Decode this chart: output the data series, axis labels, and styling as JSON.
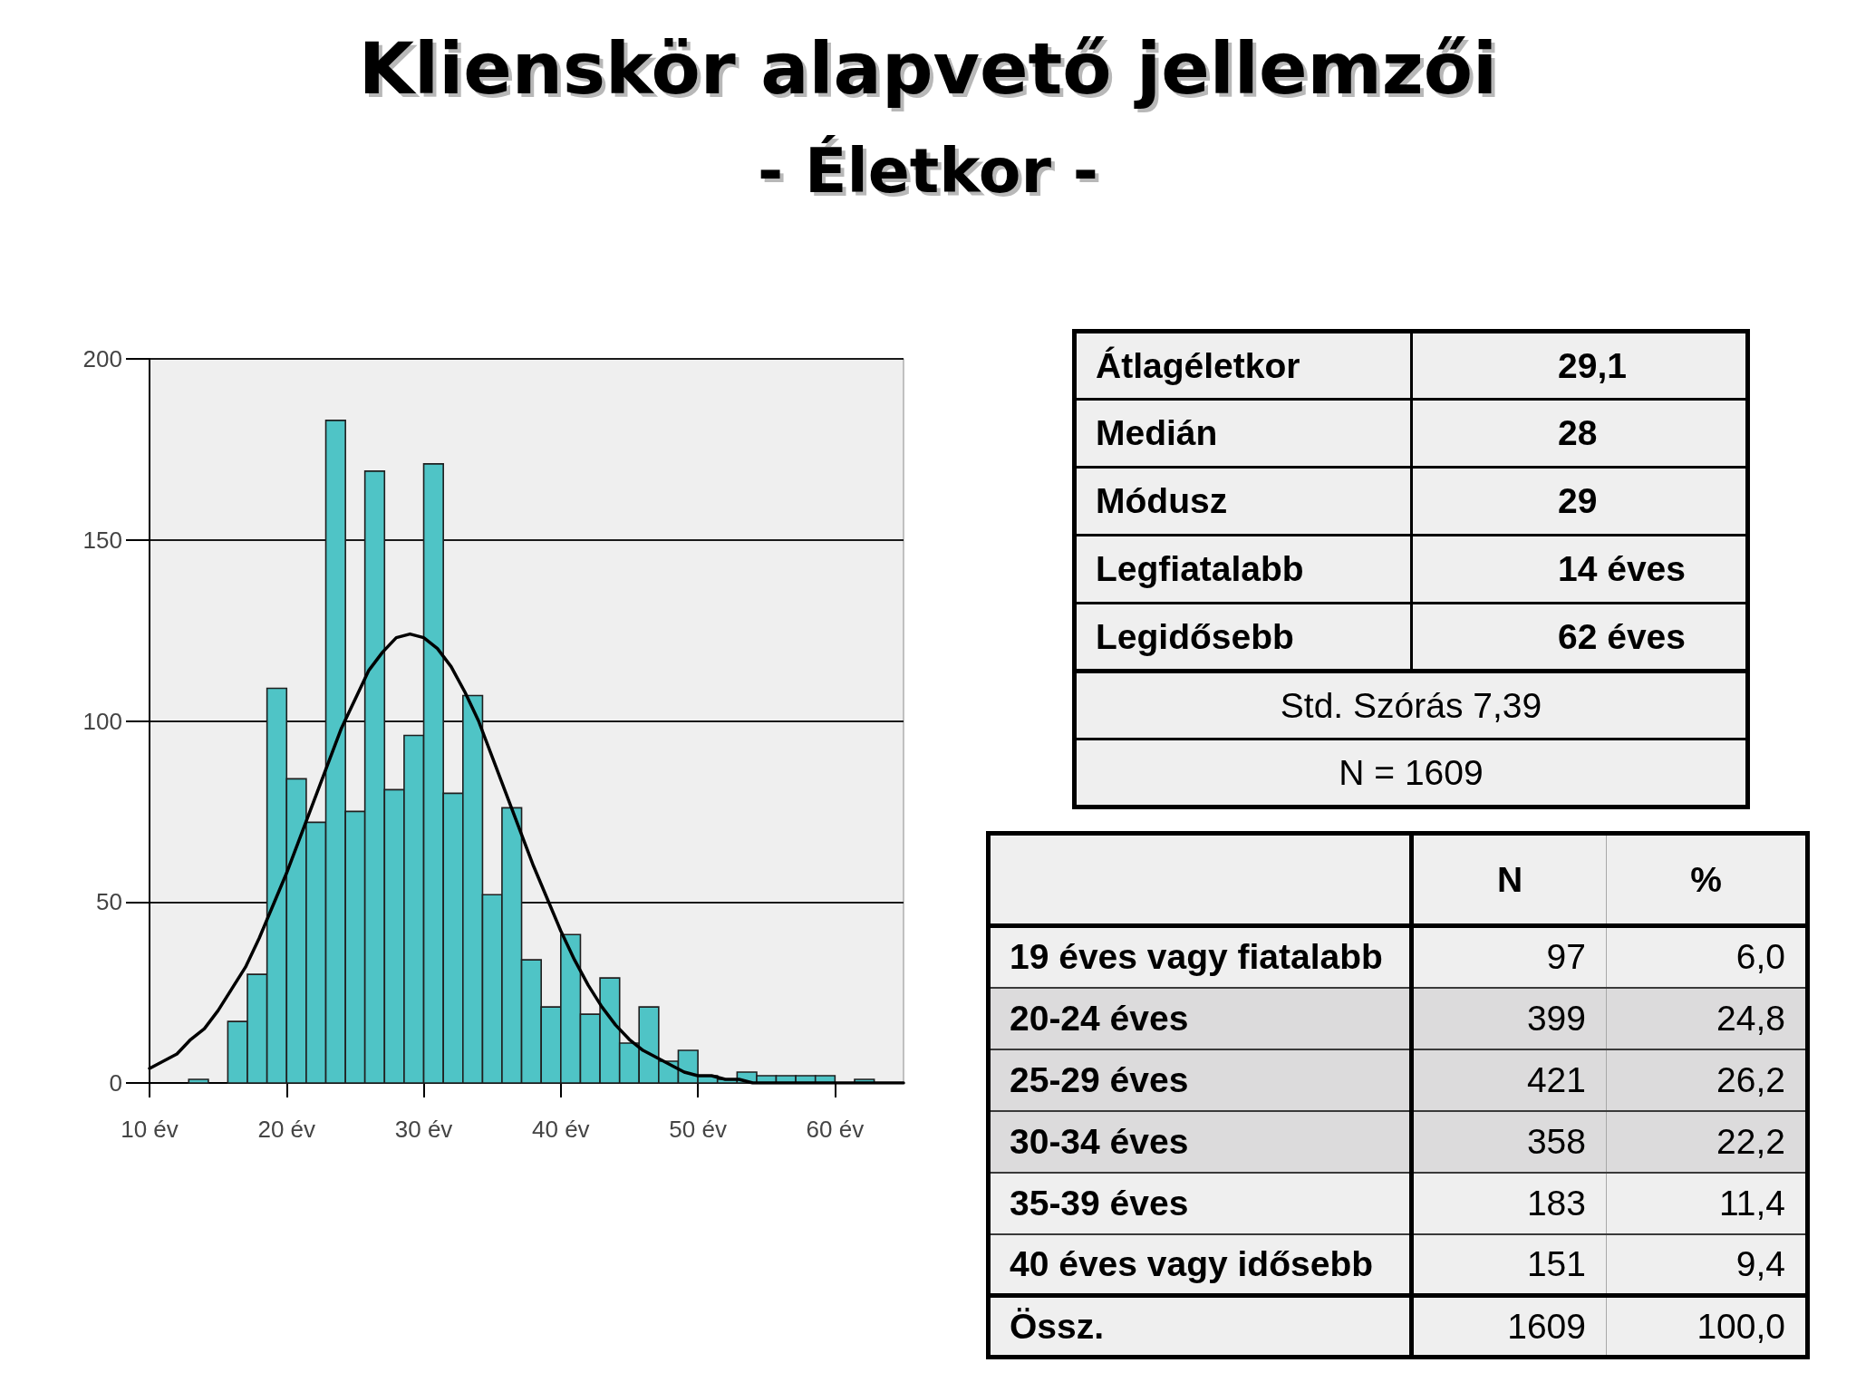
{
  "chart_data": [
    {
      "type": "histogram",
      "title": "Klienskör alapvető jellemzői",
      "subtitle": "- Életkor -",
      "bins": [
        12.86,
        14.29,
        15.71,
        17.14,
        18.57,
        20,
        21.43,
        22.86,
        24.29,
        25.71,
        27.14,
        28.57,
        30,
        31.43,
        32.86,
        34.29,
        35.71,
        37.14,
        38.57,
        40,
        41.43,
        42.86,
        44.29,
        45.71,
        47.14,
        48.57,
        50,
        51.43,
        52.86,
        54.29,
        55.71,
        57.14,
        58.57,
        60,
        61.43,
        62.86
      ],
      "series": [
        {
          "type": "histogram",
          "color": "#4fc4c6",
          "values": [
            1,
            0,
            17,
            30,
            109,
            84,
            72,
            183,
            75,
            169,
            81,
            96,
            171,
            80,
            107,
            52,
            76,
            34,
            21,
            41,
            19,
            29,
            11,
            21,
            6,
            9,
            2,
            1,
            3,
            2,
            2,
            2,
            2,
            0,
            1
          ]
        },
        {
          "type": "line",
          "color": "#000000",
          "x": [
            10,
            11,
            12,
            13,
            14,
            15,
            16,
            17,
            18,
            19,
            20,
            21,
            22,
            23,
            24,
            25,
            26,
            27,
            28,
            29,
            30,
            31,
            32,
            33,
            34,
            35,
            36,
            37,
            38,
            39,
            40,
            41,
            42,
            43,
            44,
            45,
            46,
            47,
            48,
            49,
            50,
            51,
            52,
            53,
            54,
            56,
            58,
            60,
            62,
            65
          ],
          "values": [
            4,
            6,
            8,
            12,
            15,
            20,
            26,
            32,
            40,
            49,
            58,
            68,
            78,
            88,
            98,
            106,
            114,
            119,
            123,
            124,
            123,
            120,
            115,
            108,
            100,
            90,
            80,
            70,
            60,
            51,
            42,
            34,
            27,
            21,
            16,
            12,
            9,
            7,
            5,
            3,
            2,
            2,
            1,
            1,
            0,
            0,
            0,
            0,
            0,
            0
          ]
        }
      ],
      "xlim": [
        10,
        65
      ],
      "xticks": [
        {
          "value": 10,
          "label": "10 év"
        },
        {
          "value": 20,
          "label": "20 év"
        },
        {
          "value": 30,
          "label": "30 év"
        },
        {
          "value": 40,
          "label": "40 év"
        },
        {
          "value": 50,
          "label": "50 év"
        },
        {
          "value": 60,
          "label": "60 év"
        }
      ],
      "ylim": [
        0,
        200
      ],
      "yticks": [
        0,
        50,
        100,
        150,
        200
      ],
      "grid": "y"
    },
    {
      "type": "other",
      "y_categories": [
        "Átlagéletkor",
        "Medián",
        "Módusz",
        "Legfiatalabb",
        "Legidősebb"
      ],
      "cell_labels": [
        [
          "29,1"
        ],
        [
          "28"
        ],
        [
          "29"
        ],
        [
          "14 éves"
        ],
        [
          "62 éves"
        ]
      ],
      "annotations": [
        "Std. Szórás 7,39",
        "N = 1609"
      ]
    },
    {
      "type": "other",
      "categories": [
        "N",
        "%"
      ],
      "y_categories": [
        "19 éves vagy fiatalabb",
        "20-24 éves",
        "25-29 éves",
        "30-34 éves",
        "35-39 éves",
        "40 éves vagy idősebb",
        "Össz."
      ],
      "cell_labels": [
        [
          "97",
          "6,0"
        ],
        [
          "399",
          "24,8"
        ],
        [
          "421",
          "26,2"
        ],
        [
          "358",
          "22,2"
        ],
        [
          "183",
          "11,4"
        ],
        [
          "151",
          "9,4"
        ],
        [
          "1609",
          "100,0"
        ]
      ],
      "colors": [
        "#efefef",
        "#dcdbdc",
        "#dcdbdc",
        "#dcdbdc",
        "#efefef",
        "#efefef",
        "#efefef"
      ]
    }
  ]
}
